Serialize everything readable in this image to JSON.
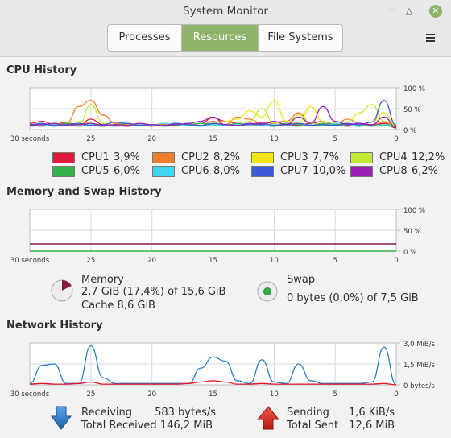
{
  "window": {
    "title": "System Monitor"
  },
  "tabs": [
    {
      "label": "Processes"
    },
    {
      "label": "Resources",
      "active": true
    },
    {
      "label": "File Systems"
    }
  ],
  "colors": {
    "accent": "#8fb36b",
    "grid": "#d9d9d9"
  },
  "cpu": {
    "title": "CPU History",
    "y_ticks": [
      "100 %",
      "50 %",
      "0 %"
    ],
    "x_ticks": [
      "30 seconds",
      "25",
      "20",
      "15",
      "10",
      "5",
      "0"
    ],
    "legend": [
      {
        "name": "CPU1",
        "value": "3,9%",
        "color": "#e0193d"
      },
      {
        "name": "CPU2",
        "value": "8,2%",
        "color": "#f07d2d"
      },
      {
        "name": "CPU3",
        "value": "7,7%",
        "color": "#f4e418"
      },
      {
        "name": "CPU4",
        "value": "12,2%",
        "color": "#c3ea31"
      },
      {
        "name": "CPU5",
        "value": "6,0%",
        "color": "#36b04a"
      },
      {
        "name": "CPU6",
        "value": "8,0%",
        "color": "#3fd4f0"
      },
      {
        "name": "CPU7",
        "value": "10,0%",
        "color": "#3a5ad6"
      },
      {
        "name": "CPU8",
        "value": "6,2%",
        "color": "#9a21b8"
      }
    ]
  },
  "memory": {
    "title": "Memory and Swap History",
    "y_ticks": [
      "100 %",
      "50 %",
      "0 %"
    ],
    "x_ticks": [
      "30 seconds",
      "25",
      "20",
      "15",
      "10",
      "5",
      "0"
    ],
    "mem_label": "Memory",
    "mem_usage": "2,7 GiB (17,4%) of 15,6 GiB",
    "mem_cache": "Cache 8,6 GiB",
    "mem_percent": 17.4,
    "mem_color": "#8a1a3c",
    "swap_label": "Swap",
    "swap_usage": "0 bytes (0,0%) of 7,5 GiB",
    "swap_percent": 0,
    "swap_color": "#36b04a"
  },
  "network": {
    "title": "Network History",
    "y_ticks": [
      "3,0 MiB/s",
      "1,5 MiB/s",
      "0 bytes/s"
    ],
    "x_ticks": [
      "30 seconds",
      "25",
      "20",
      "15",
      "10",
      "5",
      "0"
    ],
    "receiving_label": "Receiving",
    "receiving_value": "583 bytes/s",
    "total_received_label": "Total Received",
    "total_received_value": "146,2 MiB",
    "sending_label": "Sending",
    "sending_value": "1,6 KiB/s",
    "total_sent_label": "Total Sent",
    "total_sent_value": "12,6 MiB",
    "recv_color": "#2a7fc4",
    "send_color": "#e0192a"
  },
  "chart_data": [
    {
      "type": "line",
      "title": "CPU History",
      "x": [
        30,
        29,
        28,
        27,
        26,
        25,
        24,
        23,
        22,
        21,
        20,
        19,
        18,
        17,
        16,
        15,
        14,
        13,
        12,
        11,
        10,
        9,
        8,
        7,
        6,
        5,
        4,
        3,
        2,
        1,
        0
      ],
      "ylim": [
        0,
        100
      ],
      "series": [
        {
          "name": "CPU1",
          "values": [
            15,
            20,
            12,
            18,
            10,
            25,
            12,
            10,
            8,
            12,
            10,
            12,
            15,
            10,
            15,
            28,
            20,
            15,
            12,
            18,
            15,
            12,
            10,
            15,
            20,
            12,
            8,
            12,
            10,
            15,
            4
          ]
        },
        {
          "name": "CPU2",
          "values": [
            10,
            8,
            12,
            15,
            55,
            70,
            35,
            15,
            12,
            10,
            8,
            12,
            10,
            15,
            10,
            20,
            12,
            30,
            25,
            15,
            18,
            20,
            40,
            15,
            12,
            10,
            25,
            15,
            12,
            18,
            8
          ]
        },
        {
          "name": "CPU3",
          "values": [
            8,
            12,
            10,
            15,
            20,
            15,
            10,
            12,
            10,
            15,
            12,
            10,
            8,
            12,
            10,
            15,
            20,
            25,
            45,
            30,
            70,
            20,
            15,
            55,
            20,
            15,
            10,
            12,
            18,
            40,
            8
          ]
        },
        {
          "name": "CPU4",
          "values": [
            12,
            10,
            15,
            12,
            10,
            60,
            15,
            12,
            10,
            8,
            12,
            15,
            10,
            12,
            15,
            10,
            12,
            10,
            20,
            50,
            15,
            12,
            35,
            15,
            10,
            12,
            18,
            40,
            60,
            20,
            12
          ]
        },
        {
          "name": "CPU5",
          "values": [
            10,
            12,
            8,
            15,
            12,
            10,
            8,
            12,
            15,
            10,
            12,
            8,
            10,
            12,
            15,
            12,
            10,
            15,
            12,
            10,
            8,
            15,
            12,
            10,
            15,
            12,
            10,
            8,
            12,
            10,
            6
          ]
        },
        {
          "name": "CPU6",
          "values": [
            8,
            10,
            12,
            10,
            8,
            12,
            10,
            8,
            10,
            12,
            10,
            15,
            12,
            10,
            8,
            12,
            10,
            12,
            15,
            10,
            12,
            10,
            8,
            12,
            10,
            15,
            12,
            10,
            8,
            12,
            8
          ]
        },
        {
          "name": "CPU7",
          "values": [
            12,
            15,
            10,
            12,
            15,
            10,
            12,
            18,
            15,
            10,
            12,
            10,
            15,
            12,
            10,
            15,
            12,
            10,
            12,
            15,
            10,
            12,
            15,
            10,
            12,
            10,
            15,
            12,
            18,
            70,
            10
          ]
        },
        {
          "name": "CPU8",
          "values": [
            10,
            12,
            15,
            10,
            12,
            15,
            10,
            12,
            10,
            15,
            12,
            10,
            12,
            15,
            20,
            30,
            12,
            10,
            15,
            12,
            20,
            12,
            30,
            15,
            55,
            20,
            12,
            15,
            12,
            30,
            6
          ]
        }
      ]
    },
    {
      "type": "line",
      "title": "Memory and Swap History",
      "x": [
        30,
        0
      ],
      "ylim": [
        0,
        100
      ],
      "series": [
        {
          "name": "Memory",
          "values": [
            17.4,
            17.4
          ]
        },
        {
          "name": "Swap",
          "values": [
            0,
            0
          ]
        }
      ]
    },
    {
      "type": "line",
      "title": "Network History",
      "x": [
        30,
        29,
        28,
        27,
        26,
        25,
        24,
        23,
        22,
        21,
        20,
        19,
        18,
        17,
        16,
        15,
        14,
        13,
        12,
        11,
        10,
        9,
        8,
        7,
        6,
        5,
        4,
        3,
        2,
        1,
        0
      ],
      "ylim": [
        0,
        3.0
      ],
      "series": [
        {
          "name": "Receiving",
          "values": [
            0.1,
            1.4,
            1.5,
            0.1,
            0.1,
            2.8,
            0.5,
            0.1,
            0.1,
            0.1,
            0.1,
            0.1,
            0.1,
            0.1,
            1.2,
            2.0,
            1.7,
            0.3,
            0.1,
            1.8,
            0.2,
            0.1,
            1.5,
            0.3,
            0.1,
            0.1,
            0.1,
            0.1,
            0.2,
            2.7,
            0.0
          ]
        },
        {
          "name": "Sending",
          "values": [
            0.05,
            0.1,
            0.05,
            0.05,
            0.1,
            0.2,
            0.05,
            0.05,
            0.05,
            0.05,
            0.05,
            0.05,
            0.05,
            0.1,
            0.2,
            0.3,
            0.2,
            0.05,
            0.05,
            0.1,
            0.05,
            0.05,
            0.05,
            0.05,
            0.05,
            0.05,
            0.05,
            0.05,
            0.05,
            0.1,
            0.0
          ]
        }
      ]
    }
  ]
}
